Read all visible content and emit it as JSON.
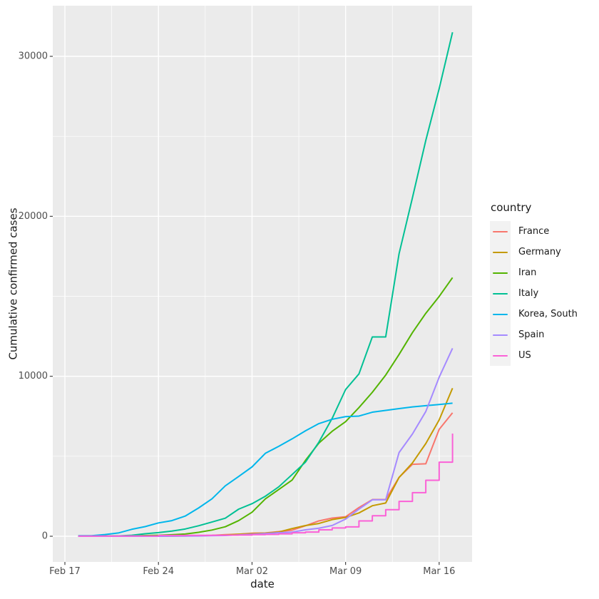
{
  "figure": {
    "background": "#FFFFFF",
    "panel_background": "#EBEBEB",
    "grid_color": "#FFFFFF",
    "tick_color": "#333333",
    "tick_text_color": "#4D4D4D",
    "title_text_color": "#1A1A1A",
    "legend_key_background": "#F2F2F2"
  },
  "axes": {
    "x_title": "date",
    "y_title": "Cumulative confirmed cases"
  },
  "legend": {
    "title": "country"
  },
  "chart_data": {
    "type": "line",
    "title": "",
    "xlabel": "date",
    "ylabel": "Cumulative confirmed cases",
    "grid": true,
    "legend_position": "right",
    "ylim": [
      0,
      33000
    ],
    "y_ticks": [
      0,
      10000,
      20000,
      30000
    ],
    "y_tick_labels": [
      "0",
      "10000",
      "20000",
      "30000"
    ],
    "y_minor_ticks": [
      5000,
      15000,
      25000
    ],
    "x_dates": [
      "Feb 18",
      "Feb 19",
      "Feb 20",
      "Feb 21",
      "Feb 22",
      "Feb 23",
      "Feb 24",
      "Feb 25",
      "Feb 26",
      "Feb 27",
      "Feb 28",
      "Feb 29",
      "Mar 01",
      "Mar 02",
      "Mar 03",
      "Mar 04",
      "Mar 05",
      "Mar 06",
      "Mar 07",
      "Mar 08",
      "Mar 09",
      "Mar 10",
      "Mar 11",
      "Mar 12",
      "Mar 13",
      "Mar 14",
      "Mar 15",
      "Mar 16",
      "Mar 17"
    ],
    "x_tick_labels": [
      "Feb 17",
      "Feb 24",
      "Mar 02",
      "Mar 09",
      "Mar 16"
    ],
    "x_tick_day_offsets": [
      -1,
      6,
      13,
      20,
      27
    ],
    "x_minor_day_offsets": [
      2.5,
      9.5,
      16.5,
      23.5
    ],
    "series": [
      {
        "name": "France",
        "color": "#F8766D",
        "step": false,
        "values": [
          12,
          12,
          12,
          12,
          12,
          12,
          12,
          14,
          18,
          38,
          57,
          100,
          130,
          191,
          204,
          288,
          380,
          656,
          959,
          1136,
          1219,
          1794,
          2293,
          2293,
          3681,
          4496,
          4532,
          6683,
          7715
        ]
      },
      {
        "name": "Germany",
        "color": "#C49A00",
        "step": false,
        "values": [
          16,
          16,
          16,
          16,
          16,
          16,
          16,
          17,
          27,
          46,
          48,
          79,
          130,
          159,
          196,
          262,
          482,
          670,
          799,
          1040,
          1176,
          1457,
          1908,
          2078,
          3675,
          4585,
          5795,
          7272,
          9257
        ]
      },
      {
        "name": "Iran",
        "color": "#53B400",
        "step": false,
        "values": [
          0,
          2,
          5,
          18,
          28,
          43,
          61,
          95,
          139,
          245,
          388,
          593,
          978,
          1501,
          2336,
          2922,
          3513,
          4747,
          5823,
          6566,
          7161,
          8042,
          9000,
          10075,
          11364,
          12729,
          13938,
          14991,
          16169
        ]
      },
      {
        "name": "Italy",
        "color": "#00C094",
        "step": false,
        "values": [
          3,
          3,
          3,
          20,
          62,
          155,
          229,
          322,
          453,
          655,
          888,
          1128,
          1694,
          2036,
          2502,
          3089,
          3858,
          4636,
          5883,
          7375,
          9172,
          10149,
          12462,
          12462,
          17660,
          21157,
          24747,
          27980,
          31506
        ]
      },
      {
        "name": "Korea, South",
        "color": "#00B6EB",
        "step": false,
        "values": [
          31,
          31,
          104,
          204,
          433,
          602,
          833,
          977,
          1261,
          1766,
          2337,
          3150,
          3736,
          4335,
          5186,
          5621,
          6088,
          6593,
          7041,
          7314,
          7478,
          7513,
          7755,
          7869,
          7979,
          8086,
          8162,
          8236,
          8320
        ]
      },
      {
        "name": "Spain",
        "color": "#A58AFF",
        "step": false,
        "values": [
          2,
          2,
          2,
          2,
          2,
          2,
          2,
          6,
          13,
          15,
          32,
          45,
          84,
          120,
          165,
          222,
          259,
          400,
          500,
          673,
          1073,
          1695,
          2277,
          2277,
          5232,
          6391,
          7798,
          9942,
          11748
        ]
      },
      {
        "name": "US",
        "color": "#FB61D7",
        "step": true,
        "values": [
          13,
          13,
          13,
          15,
          15,
          15,
          51,
          51,
          57,
          58,
          60,
          68,
          74,
          98,
          118,
          149,
          217,
          262,
          402,
          518,
          583,
          959,
          1281,
          1663,
          2179,
          2727,
          3499,
          4632,
          6421
        ]
      }
    ]
  }
}
